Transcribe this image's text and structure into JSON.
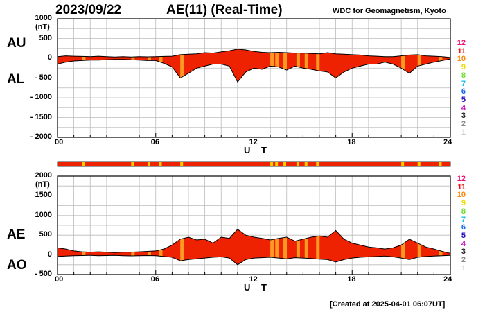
{
  "header": {
    "date": "2023/09/22",
    "title": "AE(11) (Real-Time)",
    "source": "WDC for Geomagnetism, Kyoto",
    "created": "[Created at 2025-04-01 06:07UT]"
  },
  "colors": {
    "fill": "#ee2200",
    "orange": "#ff9922",
    "yellow": "#ffcc00"
  },
  "chart_data": [
    {
      "type": "area",
      "name": "AU/AL",
      "side_labels": [
        "AU",
        "AL"
      ],
      "y_unit": "(nT)",
      "yticks": [
        "1000",
        "500",
        "0",
        "- 500",
        "- 1000",
        "- 1500",
        "- 2000"
      ],
      "ylim": [
        -2000,
        1000
      ],
      "xlim": [
        0,
        24
      ],
      "xticks": [
        "00",
        "06",
        "12",
        "18",
        "24"
      ],
      "xlabel": "U T",
      "grid": true,
      "hours": [
        0,
        0.5,
        1,
        1.5,
        2,
        2.5,
        3,
        3.5,
        4,
        4.5,
        5,
        5.5,
        6,
        6.5,
        7,
        7.5,
        8,
        8.5,
        9,
        9.5,
        10,
        10.5,
        11,
        11.5,
        12,
        12.5,
        13,
        13.5,
        14,
        14.5,
        15,
        15.5,
        16,
        16.5,
        17,
        17.5,
        18,
        18.5,
        19,
        19.5,
        20,
        20.5,
        21,
        21.5,
        22,
        22.5,
        23,
        23.5,
        24
      ],
      "upper": [
        40,
        60,
        50,
        45,
        40,
        50,
        40,
        30,
        40,
        30,
        40,
        35,
        40,
        45,
        50,
        90,
        100,
        110,
        140,
        130,
        160,
        190,
        230,
        210,
        170,
        150,
        140,
        150,
        140,
        130,
        130,
        120,
        110,
        140,
        110,
        100,
        90,
        80,
        60,
        50,
        40,
        40,
        60,
        80,
        90,
        60,
        50,
        40,
        20
      ],
      "lower": [
        -150,
        -100,
        -70,
        -60,
        -50,
        -50,
        -40,
        -30,
        -30,
        -40,
        -50,
        -60,
        -60,
        -130,
        -220,
        -500,
        -380,
        -250,
        -200,
        -150,
        -150,
        -200,
        -600,
        -350,
        -250,
        -280,
        -200,
        -220,
        -300,
        -200,
        -250,
        -280,
        -320,
        -350,
        -500,
        -350,
        -250,
        -200,
        -150,
        -150,
        -100,
        -150,
        -250,
        -380,
        -200,
        -150,
        -100,
        -60,
        -20
      ]
    },
    {
      "type": "area",
      "name": "AE/AO",
      "side_labels": [
        "AE",
        "AO"
      ],
      "y_unit": "(nT)",
      "yticks": [
        "2000",
        "1500",
        "1000",
        "500",
        "0",
        "- 500"
      ],
      "ylim": [
        -500,
        2000
      ],
      "xlim": [
        0,
        24
      ],
      "xticks": [
        "00",
        "06",
        "12",
        "18",
        "24"
      ],
      "xlabel": "U T",
      "grid": true,
      "hours": [
        0,
        0.5,
        1,
        1.5,
        2,
        2.5,
        3,
        3.5,
        4,
        4.5,
        5,
        5.5,
        6,
        6.5,
        7,
        7.5,
        8,
        8.5,
        9,
        9.5,
        10,
        10.5,
        11,
        11.5,
        12,
        12.5,
        13,
        13.5,
        14,
        14.5,
        15,
        15.5,
        16,
        16.5,
        17,
        17.5,
        18,
        18.5,
        19,
        19.5,
        20,
        20.5,
        21,
        21.5,
        22,
        22.5,
        23,
        23.5,
        24
      ],
      "upper": [
        180,
        150,
        100,
        80,
        70,
        80,
        70,
        60,
        70,
        70,
        80,
        90,
        100,
        150,
        250,
        400,
        450,
        380,
        400,
        300,
        450,
        420,
        650,
        500,
        450,
        420,
        380,
        420,
        450,
        350,
        400,
        450,
        480,
        450,
        620,
        400,
        300,
        250,
        200,
        180,
        150,
        180,
        250,
        400,
        300,
        200,
        150,
        90,
        40
      ],
      "lower": [
        -40,
        -30,
        -20,
        -15,
        -10,
        -20,
        -15,
        -10,
        -20,
        -25,
        -20,
        -15,
        -20,
        -40,
        -60,
        -150,
        -120,
        -100,
        -80,
        -60,
        -50,
        -80,
        -250,
        -120,
        -80,
        -70,
        -60,
        -80,
        -100,
        -70,
        -80,
        -90,
        -110,
        -120,
        -180,
        -120,
        -80,
        -60,
        -50,
        -40,
        -30,
        -50,
        -80,
        -120,
        -60,
        -40,
        -30,
        -20,
        -10
      ]
    }
  ],
  "activity_bars": [
    1.5,
    4.5,
    5.5,
    6.2,
    7.5,
    13.0,
    13.3,
    13.8,
    14.6,
    15.1,
    15.8,
    21.0,
    22.0,
    23.3
  ],
  "level_key": [
    {
      "label": "12",
      "color": "#ee1177"
    },
    {
      "label": "11",
      "color": "#ee1111"
    },
    {
      "label": "10",
      "color": "#ff8800"
    },
    {
      "label": "9",
      "color": "#eedd00"
    },
    {
      "label": "8",
      "color": "#66dd22"
    },
    {
      "label": "7",
      "color": "#11bbee"
    },
    {
      "label": "6",
      "color": "#1166ee"
    },
    {
      "label": "5",
      "color": "#2211bb"
    },
    {
      "label": "4",
      "color": "#cc11cc"
    },
    {
      "label": "3",
      "color": "#222222"
    },
    {
      "label": "2",
      "color": "#888888"
    },
    {
      "label": "1",
      "color": "#cccccc"
    }
  ]
}
